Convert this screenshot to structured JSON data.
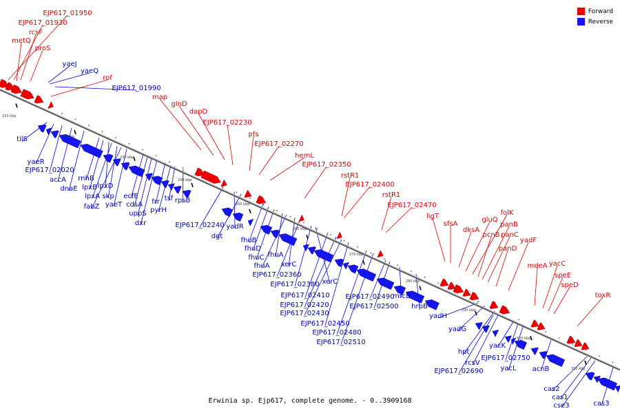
{
  "caption": "Erwinia sp. Ejp617, complete genome. - 0..3909168",
  "legend": {
    "forward": {
      "label": "Forward",
      "color": "#ee0000"
    },
    "reverse": {
      "label": "Reverse",
      "color": "#1515ee"
    }
  },
  "ticks": [
    "210 kbp",
    "220 kbp",
    "230 kbp",
    "240 kbp",
    "250 kbp",
    "260 kbp",
    "270 kbp",
    "280 kbp",
    "290 kbp",
    "300 kbp",
    "310 kbp"
  ],
  "forward_genes": [
    "EJP617_01950",
    "EJP617_01930",
    "rcsF",
    "metQ",
    "proS",
    "rof",
    "map",
    "glnD",
    "dapD",
    "EJP617_02230",
    "pfs",
    "EJP617_02270",
    "hemL",
    "EJP617_02350",
    "rstR1",
    "EJP617_02400",
    "rstR1",
    "EJP617_02470",
    "ligT",
    "sfsA",
    "dksA",
    "gluQ",
    "folK",
    "pcnB",
    "panB",
    "panC",
    "panD",
    "yadF",
    "mdeA",
    "yacC",
    "speE",
    "speD",
    "toxR"
  ],
  "reverse_genes": [
    "yaeJ",
    "yaeQ",
    "EJP617_01990",
    "tilS",
    "yaeR",
    "EJP617_02020",
    "accA",
    "dnaE",
    "rnhB",
    "lpxB",
    "lpxD",
    "lpxA",
    "skp",
    "fabZ",
    "yaeT",
    "ecfE",
    "cdsA",
    "uppS",
    "dxr",
    "frr",
    "pyrH",
    "tsf",
    "rpsB",
    "EJP617_02240",
    "yadR",
    "dgt",
    "fhuB",
    "fhuD",
    "fhuC",
    "fhuA",
    "fhuA",
    "xerC",
    "EJP617_02360",
    "EJP617_02380",
    "xerC",
    "EJP617_02410",
    "EJP617_02420",
    "EJP617_02430",
    "EJP617_02450",
    "EJP617_02480",
    "EJP617_02510",
    "EJP617_02490",
    "EJP617_02500",
    "mrcB",
    "hrpB",
    "yadH",
    "yadG",
    "hpt",
    "rcsV",
    "yacK",
    "EJP617_02750",
    "EJP617_02690",
    "yacL",
    "acnB",
    "cas2",
    "cas1",
    "cse3",
    "cas3"
  ]
}
